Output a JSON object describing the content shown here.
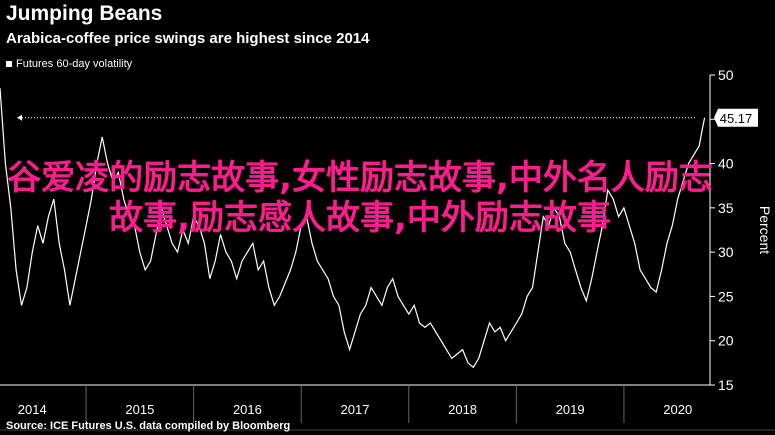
{
  "title": "Jumping Beans",
  "subtitle": "Arabica-coffee price swings are highest since 2014",
  "legend_label": "Futures 60-day volatility",
  "source": "Source: ICE Futures U.S. data compiled by Bloomberg",
  "overlay_text": "谷爱凌的励志故事,女性励志故事,中外名人励志故事,励志感人故事,中外励志故事",
  "colors": {
    "background": "#000000",
    "line": "#ffffff",
    "overlay": "#ff1d8e",
    "grid": "#333333"
  },
  "chart_data": {
    "type": "line",
    "ylabel": "Percent",
    "ylim": [
      15,
      50
    ],
    "yticks": [
      15,
      20,
      25,
      30,
      35,
      40,
      45,
      50
    ],
    "xticks": [
      "2014",
      "2015",
      "2016",
      "2017",
      "2018",
      "2019",
      "2020"
    ],
    "xlim": [
      2013.7,
      2020.3
    ],
    "grid": false,
    "legend_position": "top-left",
    "reference_label": "45.17",
    "reference_value": 45.17,
    "series": [
      {
        "name": "Futures 60-day volatility",
        "points": [
          [
            2013.7,
            48.5
          ],
          [
            2013.75,
            40.0
          ],
          [
            2013.8,
            35.0
          ],
          [
            2013.85,
            28.0
          ],
          [
            2013.9,
            24.0
          ],
          [
            2013.95,
            26.0
          ],
          [
            2014.0,
            30.0
          ],
          [
            2014.05,
            33.0
          ],
          [
            2014.1,
            31.0
          ],
          [
            2014.15,
            34.0
          ],
          [
            2014.2,
            36.0
          ],
          [
            2014.25,
            31.0
          ],
          [
            2014.3,
            28.0
          ],
          [
            2014.35,
            24.0
          ],
          [
            2014.4,
            27.0
          ],
          [
            2014.45,
            30.0
          ],
          [
            2014.5,
            33.0
          ],
          [
            2014.55,
            36.0
          ],
          [
            2014.6,
            40.0
          ],
          [
            2014.65,
            43.0
          ],
          [
            2014.7,
            40.0
          ],
          [
            2014.75,
            38.0
          ],
          [
            2014.8,
            39.0
          ],
          [
            2014.85,
            36.0
          ],
          [
            2014.9,
            34.0
          ],
          [
            2014.95,
            33.0
          ],
          [
            2015.0,
            30.0
          ],
          [
            2015.05,
            28.0
          ],
          [
            2015.1,
            29.0
          ],
          [
            2015.15,
            32.0
          ],
          [
            2015.2,
            35.0
          ],
          [
            2015.25,
            33.0
          ],
          [
            2015.3,
            31.0
          ],
          [
            2015.35,
            30.0
          ],
          [
            2015.4,
            32.5
          ],
          [
            2015.45,
            31.0
          ],
          [
            2015.5,
            34.0
          ],
          [
            2015.55,
            33.0
          ],
          [
            2015.6,
            31.0
          ],
          [
            2015.65,
            27.0
          ],
          [
            2015.7,
            29.0
          ],
          [
            2015.75,
            32.0
          ],
          [
            2015.8,
            30.0
          ],
          [
            2015.85,
            29.0
          ],
          [
            2015.9,
            27.0
          ],
          [
            2015.95,
            29.0
          ],
          [
            2016.0,
            30.0
          ],
          [
            2016.05,
            31.0
          ],
          [
            2016.1,
            28.0
          ],
          [
            2016.15,
            29.0
          ],
          [
            2016.2,
            26.0
          ],
          [
            2016.25,
            24.0
          ],
          [
            2016.3,
            25.0
          ],
          [
            2016.35,
            26.5
          ],
          [
            2016.4,
            28.0
          ],
          [
            2016.45,
            30.0
          ],
          [
            2016.5,
            33.0
          ],
          [
            2016.55,
            34.0
          ],
          [
            2016.6,
            31.0
          ],
          [
            2016.65,
            29.0
          ],
          [
            2016.7,
            28.0
          ],
          [
            2016.75,
            27.0
          ],
          [
            2016.8,
            25.0
          ],
          [
            2016.85,
            24.0
          ],
          [
            2016.9,
            21.0
          ],
          [
            2016.95,
            19.0
          ],
          [
            2017.0,
            21.0
          ],
          [
            2017.05,
            23.0
          ],
          [
            2017.1,
            24.0
          ],
          [
            2017.15,
            26.0
          ],
          [
            2017.2,
            25.0
          ],
          [
            2017.25,
            24.0
          ],
          [
            2017.3,
            26.0
          ],
          [
            2017.35,
            27.0
          ],
          [
            2017.4,
            25.0
          ],
          [
            2017.45,
            24.0
          ],
          [
            2017.5,
            23.0
          ],
          [
            2017.55,
            24.0
          ],
          [
            2017.6,
            22.0
          ],
          [
            2017.65,
            21.5
          ],
          [
            2017.7,
            22.0
          ],
          [
            2017.75,
            21.0
          ],
          [
            2017.8,
            20.0
          ],
          [
            2017.85,
            19.0
          ],
          [
            2017.9,
            18.0
          ],
          [
            2017.95,
            18.5
          ],
          [
            2018.0,
            19.0
          ],
          [
            2018.05,
            17.5
          ],
          [
            2018.1,
            17.0
          ],
          [
            2018.15,
            18.0
          ],
          [
            2018.2,
            20.0
          ],
          [
            2018.25,
            22.0
          ],
          [
            2018.3,
            21.0
          ],
          [
            2018.35,
            21.5
          ],
          [
            2018.4,
            20.0
          ],
          [
            2018.45,
            21.0
          ],
          [
            2018.5,
            22.0
          ],
          [
            2018.55,
            23.0
          ],
          [
            2018.6,
            25.0
          ],
          [
            2018.65,
            26.0
          ],
          [
            2018.7,
            30.0
          ],
          [
            2018.75,
            34.0
          ],
          [
            2018.8,
            33.0
          ],
          [
            2018.85,
            35.0
          ],
          [
            2018.9,
            34.0
          ],
          [
            2018.95,
            31.0
          ],
          [
            2019.0,
            30.0
          ],
          [
            2019.05,
            28.0
          ],
          [
            2019.1,
            26.0
          ],
          [
            2019.15,
            24.5
          ],
          [
            2019.2,
            27.0
          ],
          [
            2019.25,
            30.0
          ],
          [
            2019.3,
            33.0
          ],
          [
            2019.35,
            37.0
          ],
          [
            2019.4,
            36.0
          ],
          [
            2019.45,
            34.0
          ],
          [
            2019.5,
            35.0
          ],
          [
            2019.55,
            33.0
          ],
          [
            2019.6,
            31.0
          ],
          [
            2019.65,
            28.0
          ],
          [
            2019.7,
            27.0
          ],
          [
            2019.75,
            26.0
          ],
          [
            2019.8,
            25.5
          ],
          [
            2019.85,
            28.0
          ],
          [
            2019.9,
            31.0
          ],
          [
            2019.95,
            33.0
          ],
          [
            2020.0,
            36.0
          ],
          [
            2020.05,
            38.0
          ],
          [
            2020.1,
            40.0
          ],
          [
            2020.15,
            41.0
          ],
          [
            2020.2,
            42.0
          ],
          [
            2020.23,
            44.0
          ],
          [
            2020.25,
            45.17
          ]
        ]
      }
    ]
  }
}
